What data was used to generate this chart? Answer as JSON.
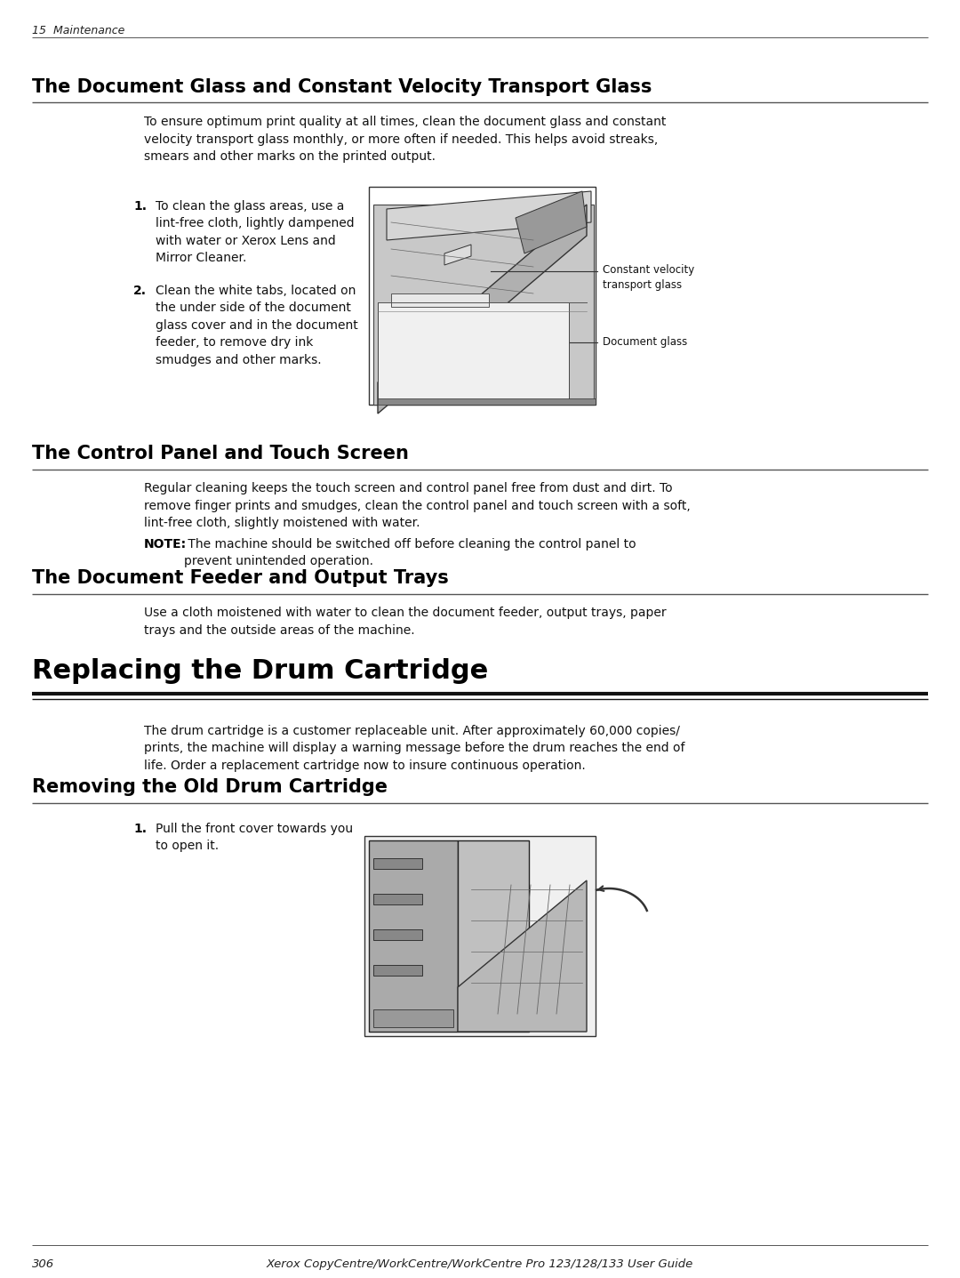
{
  "bg_color": "#ffffff",
  "text_color": "#000000",
  "header_text": "15  Maintenance",
  "footer_page": "306",
  "footer_center": "Xerox CopyCentre/WorkCentre/WorkCentre Pro 123/128/133 User Guide",
  "section1_title": "The Document Glass and Constant Velocity Transport Glass",
  "section1_body": "To ensure optimum print quality at all times, clean the document glass and constant\nvelocity transport glass monthly, or more often if needed. This helps avoid streaks,\nsmears and other marks on the printed output.",
  "section1_step1_num": "1.",
  "section1_step1": "To clean the glass areas, use a\nlint-free cloth, lightly dampened\nwith water or Xerox Lens and\nMirror Cleaner.",
  "section1_step2_num": "2.",
  "section1_step2": "Clean the white tabs, located on\nthe under side of the document\nglass cover and in the document\nfeeder, to remove dry ink\nsmudges and other marks.",
  "section1_label1": "Constant velocity\ntransport glass",
  "section1_label2": "Document glass",
  "section2_title": "The Control Panel and Touch Screen",
  "section2_body": "Regular cleaning keeps the touch screen and control panel free from dust and dirt. To\nremove finger prints and smudges, clean the control panel and touch screen with a soft,\nlint-free cloth, slightly moistened with water.",
  "section2_note_bold": "NOTE:",
  "section2_note_rest": " The machine should be switched off before cleaning the control panel to\nprevent unintended operation.",
  "section3_title": "The Document Feeder and Output Trays",
  "section3_body": "Use a cloth moistened with water to clean the document feeder, output trays, paper\ntrays and the outside areas of the machine.",
  "section4_title": "Replacing the Drum Cartridge",
  "section4_body": "The drum cartridge is a customer replaceable unit. After approximately 60,000 copies/\nprints, the machine will display a warning message before the drum reaches the end of\nlife. Order a replacement cartridge now to insure continuous operation.",
  "section5_title": "Removing the Old Drum Cartridge",
  "section5_step1_num": "1.",
  "section5_step1": "Pull the front cover towards you\nto open it."
}
